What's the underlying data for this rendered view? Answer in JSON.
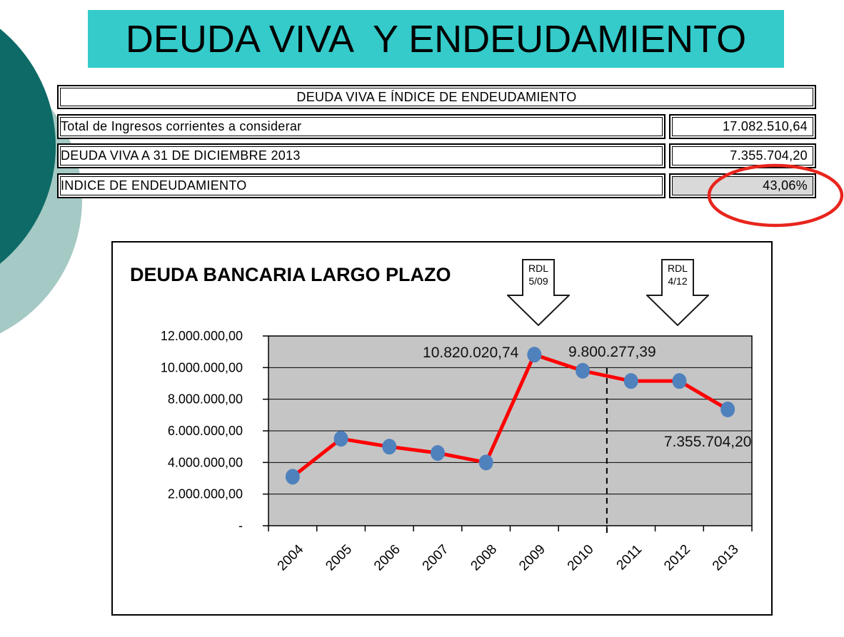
{
  "slide_title": "DEUDA VIVA  Y ENDEUDAMIENTO",
  "summary_table": {
    "header": "DEUDA VIVA E ÍNDICE DE ENDEUDAMIENTO",
    "rows": [
      {
        "label": "Total de Ingresos corrientes a considerar",
        "value": "17.082.510,64"
      },
      {
        "label": "DEUDA VIVA A 31 DE DICIEMBRE 2013",
        "value": "7.355.704,20"
      },
      {
        "label": "INDICE DE ENDEUDAMIENTO",
        "value": "43,06%"
      }
    ]
  },
  "annotations": {
    "rdl_arrows": [
      {
        "text": "RDL\n5/09"
      },
      {
        "text": "RDL\n4/12"
      }
    ],
    "highlight": "red ellipse around 43,06%"
  },
  "chart_data": {
    "type": "line",
    "title": "DEUDA BANCARIA LARGO PLAZO",
    "categories": [
      "2004",
      "2005",
      "2006",
      "2007",
      "2008",
      "2009",
      "2010",
      "2011",
      "2012",
      "2013"
    ],
    "values": [
      3100000,
      5500000,
      5000000,
      4600000,
      4000000,
      10820020.74,
      9800277.39,
      9150000,
      9150000,
      7355704.2
    ],
    "point_labels": [
      {
        "index": 5,
        "text": "10.820.020,74"
      },
      {
        "index": 6,
        "text": "9.800.277,39"
      },
      {
        "index": 9,
        "text": "7.355.704,20"
      }
    ],
    "xlabel": "",
    "ylabel": "",
    "ylim": [
      0,
      12000000
    ],
    "y_tick_step": 2000000,
    "y_tick_labels": [
      "-",
      "2.000.000,00",
      "4.000.000,00",
      "6.000.000,00",
      "8.000.000,00",
      "10.000.000,00",
      "12.000.000,00"
    ],
    "grid": true,
    "legend": "none",
    "dashed_vline_boundary_index": 7,
    "colors": {
      "line": "#fe0000",
      "marker": "#4f81bd",
      "plot_bg": "#c5c5c5"
    }
  },
  "theme_colors": {
    "title_bar": "#34cbca",
    "corner_dark": "#0d6a66",
    "corner_light": "#a5c9c4",
    "highlight_red": "#e8251d",
    "value_cell_gray": "#d9d9d9"
  }
}
